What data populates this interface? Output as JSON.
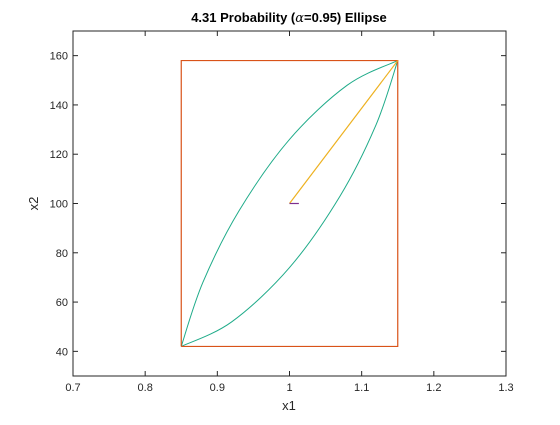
{
  "figure": {
    "title_main": "4.31 Probability (",
    "title_alpha": "α",
    "title_rest": "=0.95) Ellipse"
  },
  "chart_data": {
    "type": "line",
    "title": "4.31 Probability (α=0.95) Ellipse",
    "xlabel": "x1",
    "ylabel": "x2",
    "xlim": [
      0.7,
      1.3
    ],
    "ylim": [
      30,
      170
    ],
    "xticks": [
      "0.7",
      "0.8",
      "0.9",
      "1",
      "1.1",
      "1.2",
      "1.3"
    ],
    "yticks": [
      "40",
      "60",
      "80",
      "100",
      "120",
      "140",
      "160"
    ],
    "grid": false,
    "box": true,
    "center": [
      1.0,
      100
    ],
    "ellipse": {
      "x_range": [
        0.85,
        1.15
      ],
      "y_range": [
        42,
        158
      ],
      "upper_left_curve": [
        [
          0.85,
          42
        ],
        [
          0.88,
          68
        ],
        [
          0.93,
          97
        ],
        [
          1.0,
          126
        ],
        [
          1.08,
          148
        ],
        [
          1.15,
          158
        ]
      ],
      "lower_right_curve": [
        [
          0.85,
          42
        ],
        [
          0.92,
          52
        ],
        [
          1.0,
          74
        ],
        [
          1.07,
          103
        ],
        [
          1.12,
          132
        ],
        [
          1.15,
          158
        ]
      ]
    },
    "series": [
      {
        "color": "#D95319",
        "points": [
          [
            0.85,
            42
          ],
          [
            1.15,
            42
          ],
          [
            1.15,
            158
          ],
          [
            0.85,
            158
          ],
          [
            0.85,
            42
          ]
        ]
      },
      {
        "color": "#EDB120",
        "points": [
          [
            1.0,
            100
          ],
          [
            1.15,
            158
          ]
        ]
      },
      {
        "color": "#7E2F8E",
        "points": [
          [
            1.0,
            100
          ],
          [
            1.013,
            100
          ]
        ]
      }
    ],
    "ellipse_color": "#1FAB89"
  }
}
